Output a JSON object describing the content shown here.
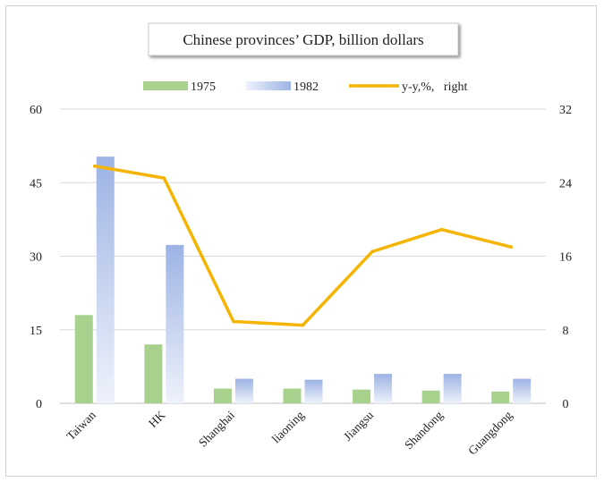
{
  "chart_data": {
    "type": "bar",
    "title": "Chinese provinces’ GDP, billion dollars",
    "categories": [
      "Taiwan",
      "HK",
      "Shanghai",
      "liaoning",
      "Jiangsu",
      "Shandong",
      "Guangdong"
    ],
    "series": [
      {
        "name": "1975",
        "type": "bar",
        "axis": "left",
        "color": "#a9d18e",
        "values": [
          18,
          12,
          3,
          3,
          2.8,
          2.6,
          2.4
        ]
      },
      {
        "name": "1982",
        "type": "bar",
        "axis": "left",
        "color": "#9db3e4",
        "values": [
          50.3,
          32.3,
          5,
          4.8,
          6,
          6,
          5
        ]
      },
      {
        "name": "y-y,%,   right",
        "type": "line",
        "axis": "right",
        "color": "#f4b400",
        "values": [
          25.8,
          24.5,
          8.9,
          8.5,
          16.5,
          18.9,
          17
        ]
      }
    ],
    "left_axis": {
      "min": 0,
      "max": 60,
      "ticks": [
        "0",
        "15",
        "30",
        "45",
        "60"
      ]
    },
    "right_axis": {
      "min": 0,
      "max": 32,
      "ticks": [
        "0",
        "8",
        "16",
        "24",
        "32"
      ]
    },
    "grid": "horizontal",
    "legend_position": "top"
  }
}
